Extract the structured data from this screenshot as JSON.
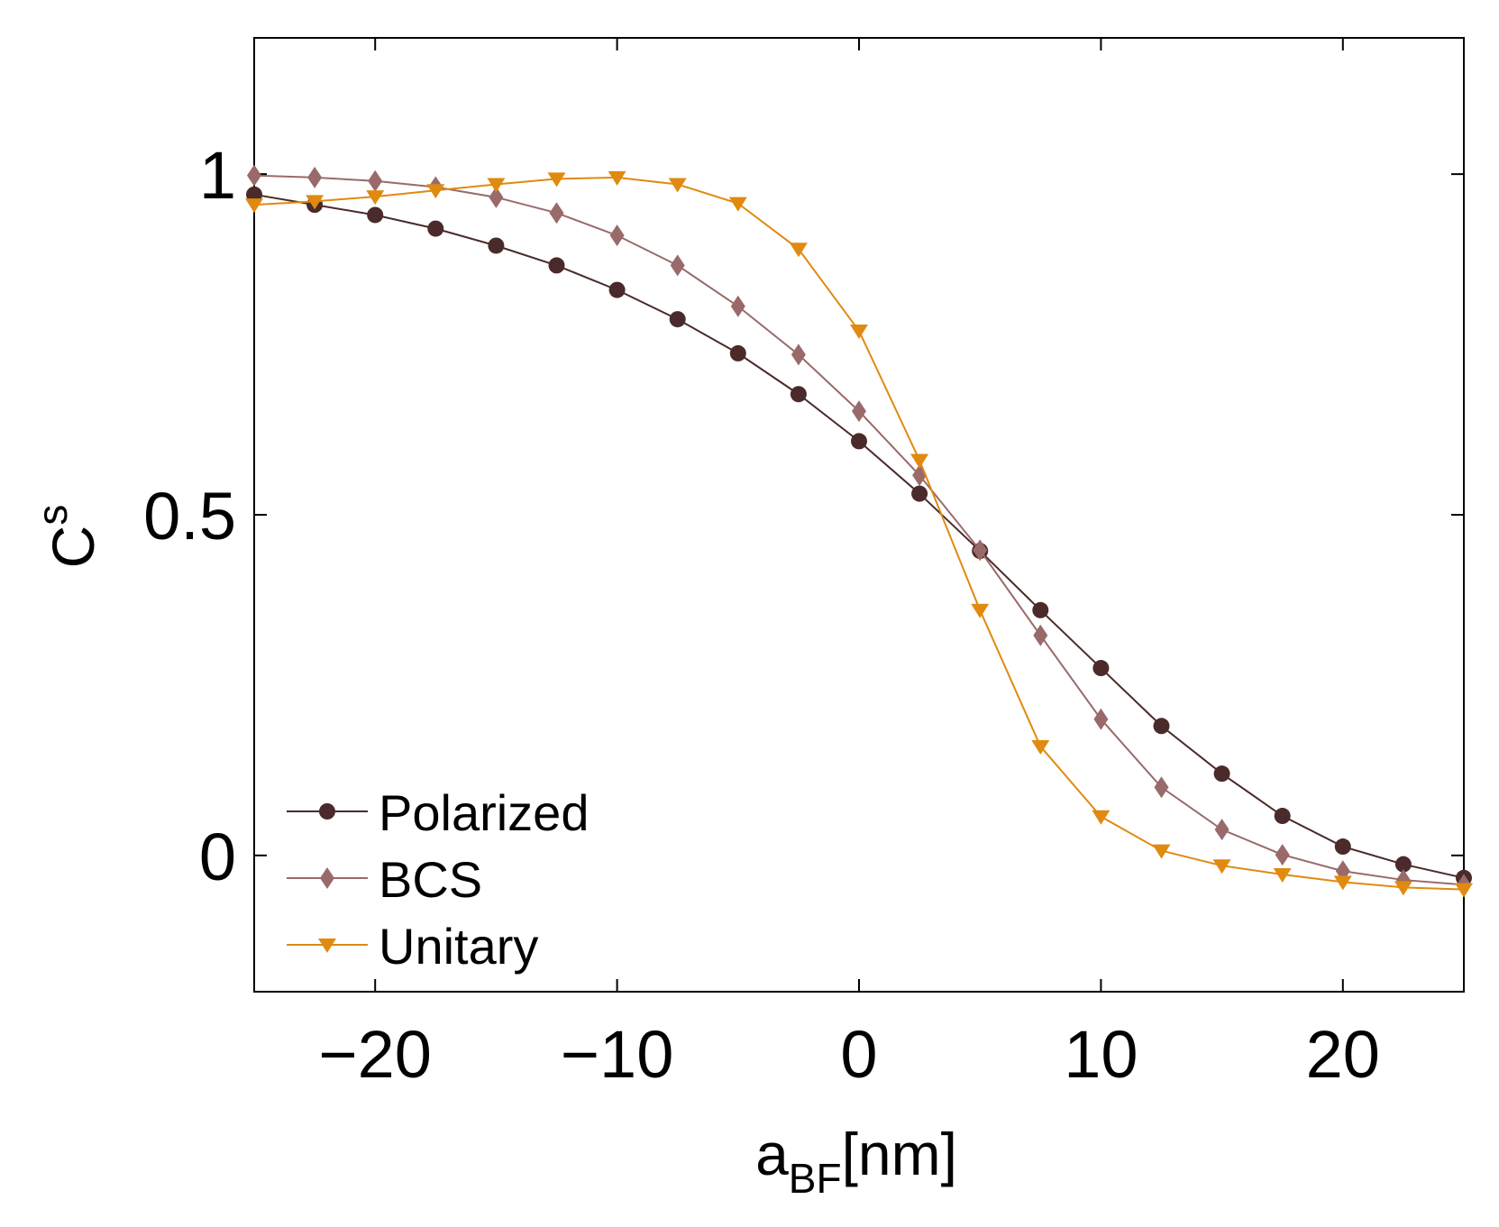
{
  "chart_data": {
    "type": "line",
    "title": "",
    "xlabel": {
      "main": "a",
      "sub": "BF",
      "suffix": "[nm]"
    },
    "ylabel": {
      "main": "C",
      "sup": "s"
    },
    "xlim": [
      -25,
      25
    ],
    "ylim": [
      -0.2,
      1.2
    ],
    "xticks": [
      -20,
      -10,
      0,
      10,
      20
    ],
    "xtick_labels": [
      "−20",
      "−10",
      "0",
      "10",
      "20"
    ],
    "yticks": [
      0,
      0.5,
      1
    ],
    "ytick_labels": [
      "0",
      "0.5",
      "1"
    ],
    "grid": false,
    "legend_position": "bottom-left",
    "x": [
      -25,
      -22.5,
      -20,
      -17.5,
      -15,
      -12.5,
      -10,
      -7.5,
      -5,
      -2.5,
      0,
      2.5,
      5,
      7.5,
      10,
      12.5,
      15,
      17.5,
      20,
      22.5,
      25
    ],
    "series": [
      {
        "name": "Polarized",
        "color": "#4a2a2a",
        "marker": "circle",
        "values": [
          0.97,
          0.955,
          0.94,
          0.92,
          0.895,
          0.866,
          0.83,
          0.787,
          0.737,
          0.677,
          0.608,
          0.531,
          0.447,
          0.36,
          0.275,
          0.19,
          0.12,
          0.058,
          0.013,
          -0.013,
          -0.033
        ]
      },
      {
        "name": "BCS",
        "color": "#9a6a6a",
        "marker": "diamond",
        "values": [
          0.998,
          0.995,
          0.99,
          0.981,
          0.966,
          0.943,
          0.91,
          0.866,
          0.806,
          0.735,
          0.652,
          0.558,
          0.448,
          0.323,
          0.2,
          0.1,
          0.038,
          0.001,
          -0.023,
          -0.036,
          -0.043
        ]
      },
      {
        "name": "Unitary",
        "color": "#e08a10",
        "marker": "triangle-down",
        "values": [
          0.955,
          0.96,
          0.967,
          0.976,
          0.985,
          0.993,
          0.995,
          0.985,
          0.957,
          0.89,
          0.77,
          0.58,
          0.36,
          0.16,
          0.057,
          0.007,
          -0.015,
          -0.028,
          -0.039,
          -0.047,
          -0.05
        ]
      }
    ]
  }
}
